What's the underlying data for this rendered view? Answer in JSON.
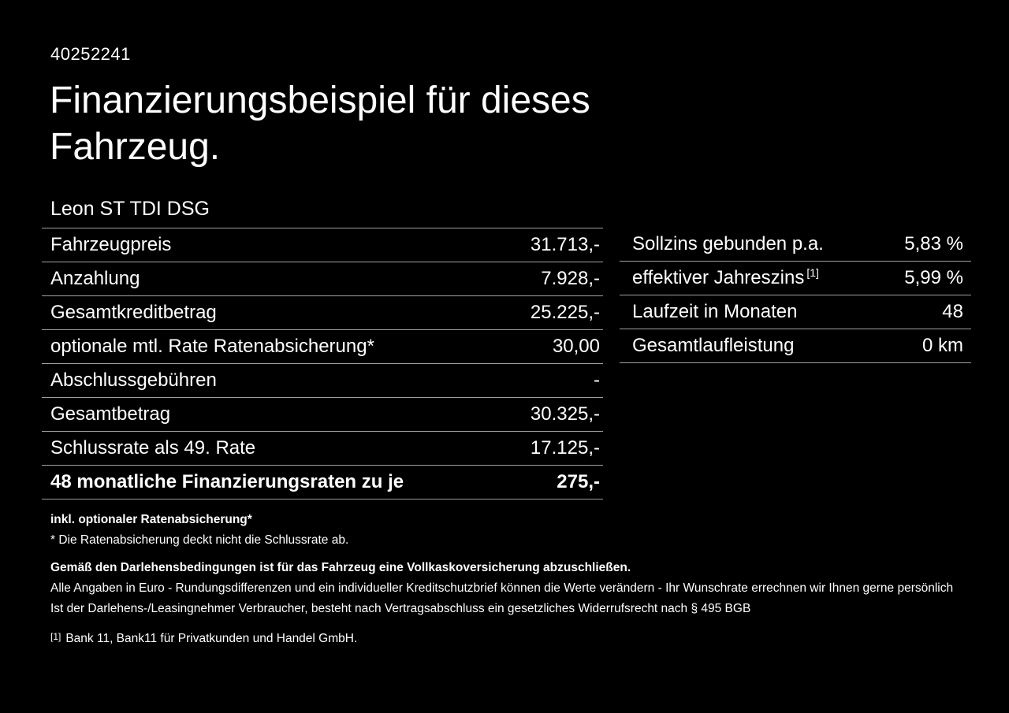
{
  "page": {
    "id_number": "40252241",
    "title_line1": "Finanzierungsbeispiel für dieses",
    "title_line2": "Fahrzeug.",
    "vehicle_model": "Leon ST TDI DSG"
  },
  "finance_table": {
    "rows": [
      {
        "label": "Fahrzeugpreis",
        "value": "31.713,-"
      },
      {
        "label": "Anzahlung",
        "value": "7.928,-"
      },
      {
        "label": "Gesamtkreditbetrag",
        "value": "25.225,-"
      },
      {
        "label": "optionale mtl. Rate Ratenabsicherung*",
        "value": "30,00"
      },
      {
        "label": "Abschlussgebühren",
        "value": "-"
      },
      {
        "label": "Gesamtbetrag",
        "value": "30.325,-"
      },
      {
        "label": "Schlussrate als 49. Rate",
        "value": "17.125,-"
      },
      {
        "label": "48 monatliche Finanzierungsraten zu je",
        "value": "275,-"
      }
    ]
  },
  "conditions_table": {
    "rows": [
      {
        "label": "Sollzins gebunden p.a.",
        "sup": "",
        "value": "5,83 %"
      },
      {
        "label": "effektiver Jahreszins",
        "sup": "[1]",
        "value": "5,99 %"
      },
      {
        "label": "Laufzeit in Monaten",
        "sup": "",
        "value": "48"
      },
      {
        "label": "Gesamtlaufleistung",
        "sup": "",
        "value": "0 km"
      }
    ]
  },
  "footnotes": {
    "rate_insurance_title": "inkl. optionaler Ratenabsicherung*",
    "rate_insurance_note": "* Die Ratenabsicherung deckt nicht die Schlussrate ab.",
    "kasko_note": "Gemäß den Darlehensbedingungen ist für das Fahrzeug eine Vollkaskoversicherung abzuschließen.",
    "euro_note": "Alle Angaben in Euro - Rundungsdifferenzen und ein individueller Kreditschutzbrief können die Werte verändern - Ihr Wunschrate errechnen wir Ihnen gerne persönlich",
    "widerruf_note": "Ist der Darlehens-/Leasingnehmer Verbraucher, besteht nach Vertragsabschluss ein gesetzliches Widerrufsrecht nach § 495 BGB",
    "bank_ref_marker": "[1]",
    "bank_ref": "Bank 11, Bank11 für Privatkunden und Handel GmbH."
  },
  "colors": {
    "background": "#000000",
    "text": "#ffffff",
    "divider": "#a0a0a0"
  }
}
